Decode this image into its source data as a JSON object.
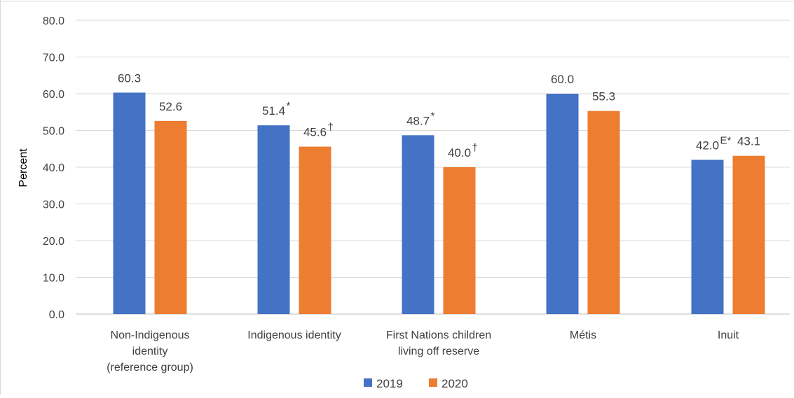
{
  "chart_data": {
    "type": "bar",
    "title": "",
    "xlabel": "",
    "ylabel": "Percent",
    "ylim": [
      0,
      80
    ],
    "yticks": [
      "0.0",
      "10.0",
      "20.0",
      "30.0",
      "40.0",
      "50.0",
      "60.0",
      "70.0",
      "80.0"
    ],
    "grid": true,
    "legend_position": "bottom",
    "categories": [
      [
        "Non-Indigenous",
        "identity",
        "(reference group)"
      ],
      [
        "Indigenous identity"
      ],
      [
        "First Nations children",
        "living off reserve"
      ],
      [
        "Métis"
      ],
      [
        "Inuit"
      ]
    ],
    "series": [
      {
        "name": "2019",
        "color": "#4472C4",
        "values": [
          60.3,
          51.4,
          48.7,
          60.0,
          42.0
        ],
        "labels": [
          "60.3",
          "51.4",
          "48.7",
          "60.0",
          "42.0"
        ],
        "marks": [
          "",
          "*",
          "*",
          "",
          "E*"
        ]
      },
      {
        "name": "2020",
        "color": "#ED7D31",
        "values": [
          52.6,
          45.6,
          40.0,
          55.3,
          43.1
        ],
        "labels": [
          "52.6",
          "45.6",
          "40.0",
          "55.3",
          "43.1"
        ],
        "marks": [
          "",
          "†",
          "†",
          "",
          ""
        ]
      }
    ]
  }
}
